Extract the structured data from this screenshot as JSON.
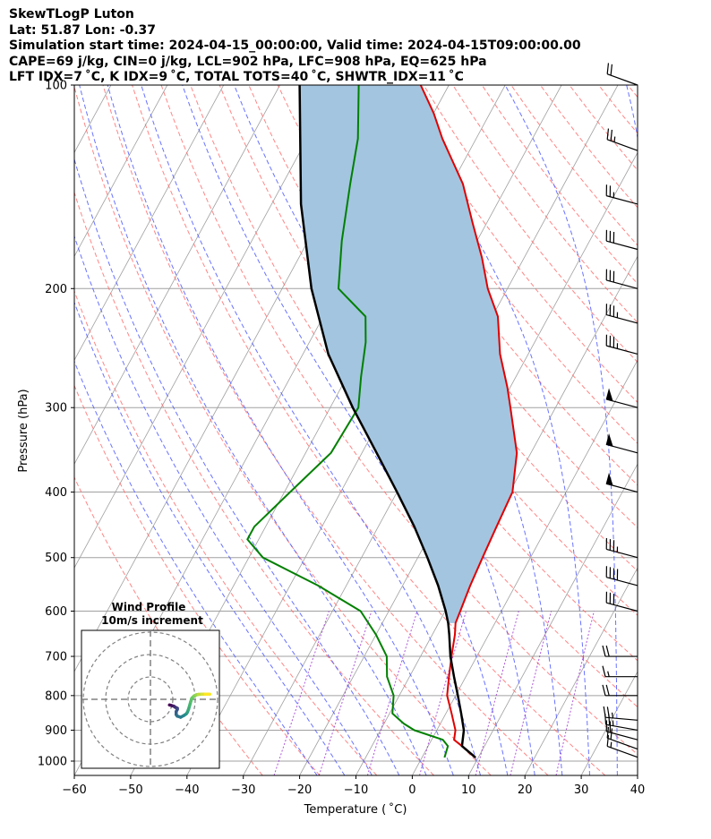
{
  "header": {
    "line1": "SkewTLogP Luton",
    "line2": "Lat: 51.87   Lon: -0.37",
    "line3": "Simulation start time: 2024-04-15_00:00:00, Valid time: 2024-04-15T09:00:00.00",
    "line4": "CAPE=69 j/kg, CIN=0 j/kg, LCL=902 hPa, LFC=908 hPa, EQ=625 hPa",
    "line5": "LFT IDX=7 ˚C, K IDX=9 ˚C, TOTAL TOTS=40 ˚C, SHWTR_IDX=11 ˚C"
  },
  "chart_data": {
    "type": "line",
    "xlabel": "Temperature ( ˚C)",
    "ylabel": "Pressure (hPa)",
    "xlim": [
      -60,
      40
    ],
    "ylim": [
      1050,
      100
    ],
    "y_scale": "log",
    "grid": true,
    "x_ticks": [
      -60,
      -50,
      -40,
      -30,
      -20,
      -10,
      0,
      10,
      20,
      30,
      40
    ],
    "y_ticks": [
      1000,
      900,
      800,
      700,
      600,
      500,
      400,
      300,
      200,
      100
    ],
    "colors": {
      "temperature": "#e00000",
      "dewpoint": "#008000",
      "parcel": "#000000",
      "cape_fill": "#a3c5e0",
      "dry_adiabat": "#ff6666",
      "moist_adiabat": "#4f5bff",
      "mixing_ratio": "#9b30d0",
      "isotherm": "#a0a0a0"
    },
    "series": [
      {
        "p": [
          988,
          950,
          930,
          900,
          850,
          800,
          750,
          700,
          650,
          625,
          600,
          550,
          500,
          450,
          400,
          350,
          300,
          280,
          250,
          220,
          200,
          180,
          160,
          140,
          120,
          110,
          100
        ],
        "values": [
          9.5,
          6.0,
          4.0,
          3.3,
          1.0,
          -1.5,
          -3.0,
          -4.5,
          -6.0,
          -7.0,
          -7.3,
          -8.0,
          -8.5,
          -9.0,
          -9.5,
          -12.5,
          -18.0,
          -20.5,
          -25.0,
          -29.0,
          -33.5,
          -37.5,
          -42.5,
          -48.0,
          -56.0,
          -60.0,
          -65.0
        ]
      },
      {
        "p": [
          988,
          950,
          930,
          900,
          880,
          850,
          800,
          750,
          700,
          650,
          600,
          550,
          500,
          470,
          450,
          400,
          350,
          300,
          270,
          240,
          220,
          200,
          170,
          140,
          120,
          100
        ],
        "values": [
          4.0,
          3.5,
          2.0,
          -4.0,
          -6.5,
          -9.5,
          -11.0,
          -14.0,
          -16.0,
          -20.0,
          -25.0,
          -35.0,
          -47.5,
          -52.0,
          -52.0,
          -49.0,
          -45.5,
          -45.0,
          -47.5,
          -50.0,
          -52.5,
          -60.0,
          -64.0,
          -68.0,
          -71.0,
          -76.0
        ]
      },
      {
        "p": [
          988,
          950,
          900,
          850,
          800,
          750,
          700,
          650,
          625,
          600,
          550,
          500,
          450,
          400,
          350,
          300,
          250,
          200,
          150,
          100
        ],
        "values": [
          9.5,
          6.0,
          4.8,
          2.7,
          0.4,
          -2.1,
          -4.7,
          -7.0,
          -8.3,
          -9.9,
          -13.7,
          -18.3,
          -23.6,
          -30.0,
          -37.4,
          -46.0,
          -55.5,
          -64.8,
          -74.8,
          -86.5
        ]
      }
    ],
    "wind_barbs": {
      "p": [
        987,
        960,
        930,
        900,
        870,
        800,
        750,
        700,
        600,
        550,
        500,
        400,
        350,
        300,
        250,
        225,
        200,
        175,
        150,
        125,
        100
      ],
      "speed_kt": [
        15,
        20,
        20,
        25,
        25,
        20,
        15,
        20,
        30,
        40,
        35,
        50,
        50,
        50,
        35,
        35,
        30,
        30,
        25,
        25,
        20
      ],
      "direction_deg": [
        290,
        290,
        285,
        280,
        275,
        270,
        270,
        270,
        285,
        285,
        285,
        285,
        285,
        285,
        285,
        285,
        285,
        285,
        285,
        290,
        290
      ]
    },
    "hodograph": {
      "title_line1": "Wind Profile",
      "title_line2": "10m/s increment",
      "rings": [
        1,
        2,
        3
      ],
      "u": [
        8.5,
        9.5,
        10.5,
        11.0,
        12.0,
        12.0,
        11.5,
        11.5,
        12.0,
        13.5,
        15.0,
        16.0,
        16.5,
        17.0,
        17.5,
        18.0,
        18.5,
        19.5,
        20.5,
        21.5,
        23.0,
        24.5,
        26.5
      ],
      "v": [
        -2.5,
        -2.8,
        -3.1,
        -3.5,
        -4.0,
        -4.5,
        -5.5,
        -6.8,
        -7.5,
        -8.0,
        -7.2,
        -6.5,
        -5.8,
        -4.5,
        -2.8,
        -1.0,
        0.5,
        1.5,
        2.0,
        2.2,
        2.3,
        2.3,
        2.3
      ],
      "colormap": [
        "#440154",
        "#3b528b",
        "#21918c",
        "#5ec962",
        "#fde725"
      ]
    }
  }
}
